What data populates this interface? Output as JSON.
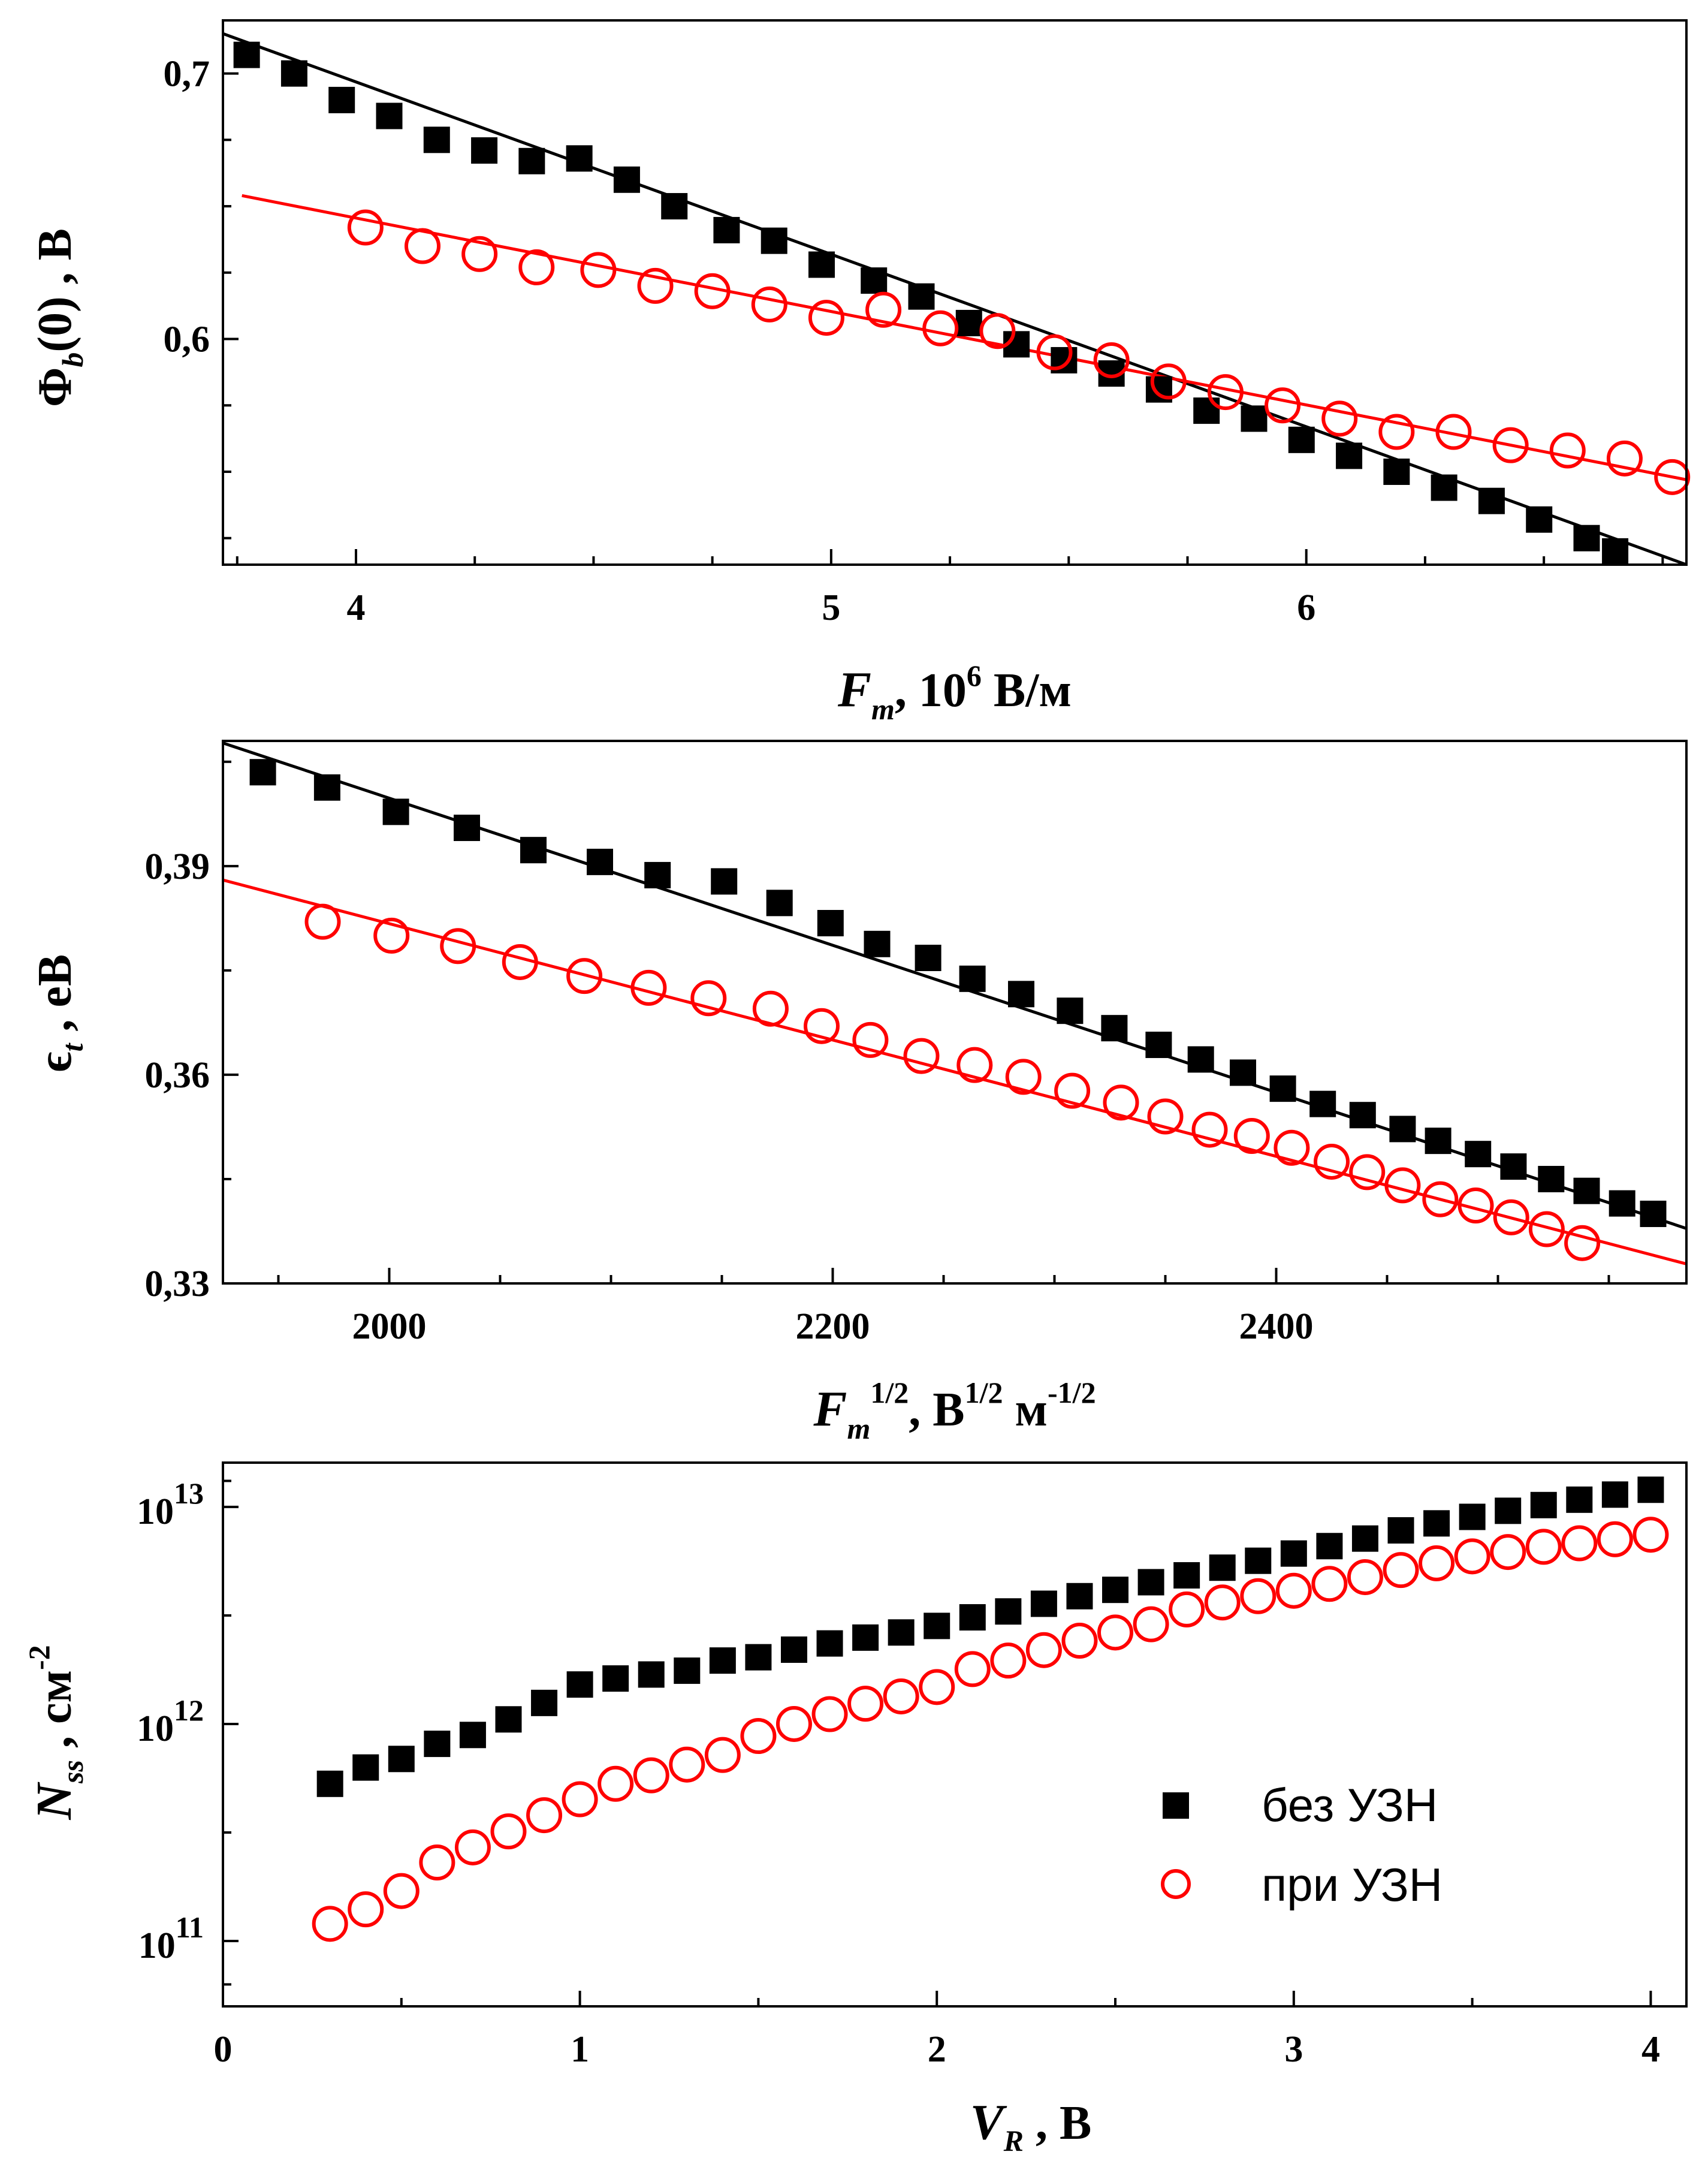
{
  "colors": {
    "series_a": "#000000",
    "series_b": "#ff0000"
  },
  "legend": {
    "items": [
      "без УЗН",
      "при УЗН"
    ],
    "placement": "bottom-right (panel 3)"
  },
  "axis_labels": {
    "p1_x": {
      "main": "F",
      "sub": "m",
      "mid": ", 10",
      "sup": "6",
      "tail": " В/м"
    },
    "p1_y": {
      "main": "Φ",
      "sub": "b",
      "tail": "(0) , В"
    },
    "p2_x": {
      "main": "F",
      "sub": "m",
      "sup": "1/2",
      "mid": ", В",
      "sup2": "1/2",
      "tail": " м",
      "sup3": "-1/2"
    },
    "p2_y": {
      "main": "ϵ",
      "sub": "t",
      "tail": " , eВ"
    },
    "p3_x": {
      "main": "V",
      "sub": "R",
      "tail": " , В"
    },
    "p3_y": {
      "main": "N",
      "sub": "ss",
      "mid": " , см",
      "sup": "-2"
    }
  },
  "chart_data": [
    {
      "type": "scatter",
      "xlim": [
        3.72,
        6.8
      ],
      "ylim": [
        0.515,
        0.72
      ],
      "xticks": [
        "4",
        "5",
        "6"
      ],
      "yticks": [
        "0,6",
        "0,7"
      ],
      "grid": false,
      "series": [
        {
          "name": "без УЗН",
          "marker": "filled-square",
          "x": [
            3.77,
            3.87,
            3.97,
            4.07,
            4.17,
            4.27,
            4.37,
            4.47,
            4.57,
            4.67,
            4.78,
            4.88,
            4.98,
            5.09,
            5.19,
            5.29,
            5.39,
            5.49,
            5.59,
            5.69,
            5.79,
            5.89,
            5.99,
            6.09,
            6.19,
            6.29,
            6.39,
            6.49,
            6.59,
            6.65
          ],
          "y": [
            0.707,
            0.7,
            0.69,
            0.684,
            0.675,
            0.671,
            0.667,
            0.668,
            0.66,
            0.65,
            0.641,
            0.637,
            0.628,
            0.622,
            0.616,
            0.606,
            0.598,
            0.592,
            0.587,
            0.581,
            0.573,
            0.57,
            0.562,
            0.556,
            0.55,
            0.544,
            0.539,
            0.532,
            0.525,
            0.52
          ]
        },
        {
          "name": "при УЗН",
          "marker": "open-circle",
          "x": [
            4.02,
            4.14,
            4.26,
            4.38,
            4.51,
            4.63,
            4.75,
            4.87,
            4.99,
            5.11,
            5.23,
            5.35,
            5.47,
            5.59,
            5.71,
            5.83,
            5.95,
            6.07,
            6.19,
            6.31,
            6.43,
            6.55,
            6.67,
            6.77
          ],
          "y": [
            0.642,
            0.635,
            0.632,
            0.627,
            0.626,
            0.62,
            0.618,
            0.613,
            0.608,
            0.611,
            0.604,
            0.603,
            0.595,
            0.592,
            0.584,
            0.58,
            0.575,
            0.57,
            0.565,
            0.565,
            0.56,
            0.558,
            0.555,
            0.548
          ]
        }
      ],
      "fits": [
        {
          "series": "без УЗН",
          "x": [
            3.72,
            6.8
          ],
          "y": [
            0.715,
            0.515
          ]
        },
        {
          "series": "при УЗН",
          "x": [
            3.76,
            6.8
          ],
          "y": [
            0.654,
            0.547
          ]
        }
      ]
    },
    {
      "type": "scatter",
      "xlim": [
        1925,
        2585
      ],
      "ylim": [
        0.33,
        0.408
      ],
      "xticks": [
        "2000",
        "2200",
        "2400"
      ],
      "yticks": [
        "0,33",
        "0,36",
        "0,39"
      ],
      "grid": false,
      "series": [
        {
          "name": "без УЗН",
          "marker": "filled-square",
          "x": [
            1943,
            1972,
            2003,
            2035,
            2065,
            2095,
            2121,
            2151,
            2176,
            2199,
            2220,
            2243,
            2263,
            2285,
            2307,
            2327,
            2347,
            2366,
            2385,
            2403,
            2421,
            2439,
            2457,
            2473,
            2491,
            2507,
            2524,
            2540,
            2556,
            2570
          ],
          "y": [
            0.4035,
            0.4013,
            0.3978,
            0.3955,
            0.3923,
            0.3906,
            0.3887,
            0.3878,
            0.3847,
            0.3818,
            0.3788,
            0.3768,
            0.3738,
            0.3716,
            0.3692,
            0.3667,
            0.3643,
            0.3622,
            0.3603,
            0.358,
            0.3558,
            0.3542,
            0.3522,
            0.3505,
            0.3486,
            0.3468,
            0.345,
            0.3433,
            0.3415,
            0.34
          ]
        },
        {
          "name": "при УЗН",
          "marker": "open-circle",
          "x": [
            1970,
            2001,
            2031,
            2059,
            2088,
            2117,
            2144,
            2172,
            2195,
            2217,
            2240,
            2264,
            2286,
            2308,
            2330,
            2350,
            2370,
            2389,
            2407,
            2425,
            2441,
            2457,
            2474,
            2490,
            2506,
            2522,
            2538
          ],
          "y": [
            0.382,
            0.38,
            0.3785,
            0.3762,
            0.3742,
            0.3725,
            0.371,
            0.3695,
            0.367,
            0.365,
            0.3627,
            0.3614,
            0.3597,
            0.3577,
            0.356,
            0.354,
            0.3521,
            0.3512,
            0.3495,
            0.3475,
            0.346,
            0.3441,
            0.3421,
            0.3412,
            0.3395,
            0.3378,
            0.3358
          ]
        }
      ],
      "fits": [
        {
          "series": "без УЗН",
          "x": [
            1925,
            2585
          ],
          "y": [
            0.4077,
            0.3379
          ]
        },
        {
          "series": "при УЗН",
          "x": [
            1925,
            2585
          ],
          "y": [
            0.388,
            0.3328
          ]
        }
      ]
    },
    {
      "type": "scatter",
      "xlim": [
        0,
        4.1
      ],
      "ylim": [
        50000000000,
        16000000000000
      ],
      "yscale": "log",
      "xticks": [
        "0",
        "1",
        "2",
        "3",
        "4"
      ],
      "yticks": [
        {
          "base": "10",
          "exp": "11"
        },
        {
          "base": "10",
          "exp": "12"
        },
        {
          "base": "10",
          "exp": "13"
        }
      ],
      "grid": false,
      "series": [
        {
          "name": "без УЗН",
          "marker": "filled-square",
          "x": [
            0.3,
            0.4,
            0.5,
            0.6,
            0.7,
            0.8,
            0.9,
            1.0,
            1.1,
            1.2,
            1.3,
            1.4,
            1.5,
            1.6,
            1.7,
            1.8,
            1.9,
            2.0,
            2.1,
            2.2,
            2.3,
            2.4,
            2.5,
            2.6,
            2.7,
            2.8,
            2.9,
            3.0,
            3.1,
            3.2,
            3.3,
            3.4,
            3.5,
            3.6,
            3.7,
            3.8,
            3.9,
            4.0
          ],
          "y": [
            530000000000,
            630000000000,
            690000000000,
            810000000000,
            890000000000,
            1050000000000,
            1250000000000,
            1520000000000,
            1620000000000,
            1690000000000,
            1760000000000,
            1960000000000,
            2030000000000,
            2200000000000,
            2350000000000,
            2500000000000,
            2640000000000,
            2830000000000,
            3100000000000,
            3300000000000,
            3580000000000,
            3880000000000,
            4150000000000,
            4500000000000,
            4840000000000,
            5250000000000,
            5650000000000,
            6100000000000,
            6600000000000,
            7150000000000,
            7800000000000,
            8400000000000,
            9000000000000,
            9600000000000,
            10200000000000,
            10800000000000,
            11400000000000,
            12000000000000
          ]
        },
        {
          "name": "при УЗН",
          "marker": "open-circle",
          "x": [
            0.3,
            0.4,
            0.5,
            0.6,
            0.7,
            0.8,
            0.9,
            1.0,
            1.1,
            1.2,
            1.3,
            1.4,
            1.5,
            1.6,
            1.7,
            1.8,
            1.9,
            2.0,
            2.1,
            2.2,
            2.3,
            2.4,
            2.5,
            2.6,
            2.7,
            2.8,
            2.9,
            3.0,
            3.1,
            3.2,
            3.3,
            3.4,
            3.5,
            3.6,
            3.7,
            3.8,
            3.9,
            4.0
          ],
          "y": [
            120000000000,
            140000000000,
            170000000000,
            230000000000,
            270000000000,
            320000000000,
            380000000000,
            450000000000,
            530000000000,
            580000000000,
            650000000000,
            720000000000,
            880000000000,
            1000000000000,
            1110000000000,
            1240000000000,
            1340000000000,
            1480000000000,
            1790000000000,
            1960000000000,
            2190000000000,
            2420000000000,
            2640000000000,
            2880000000000,
            3370000000000,
            3630000000000,
            3880000000000,
            4110000000000,
            4420000000000,
            4750000000000,
            5120000000000,
            5500000000000,
            5920000000000,
            6200000000000,
            6550000000000,
            6800000000000,
            7100000000000,
            7450000000000
          ]
        }
      ]
    }
  ]
}
